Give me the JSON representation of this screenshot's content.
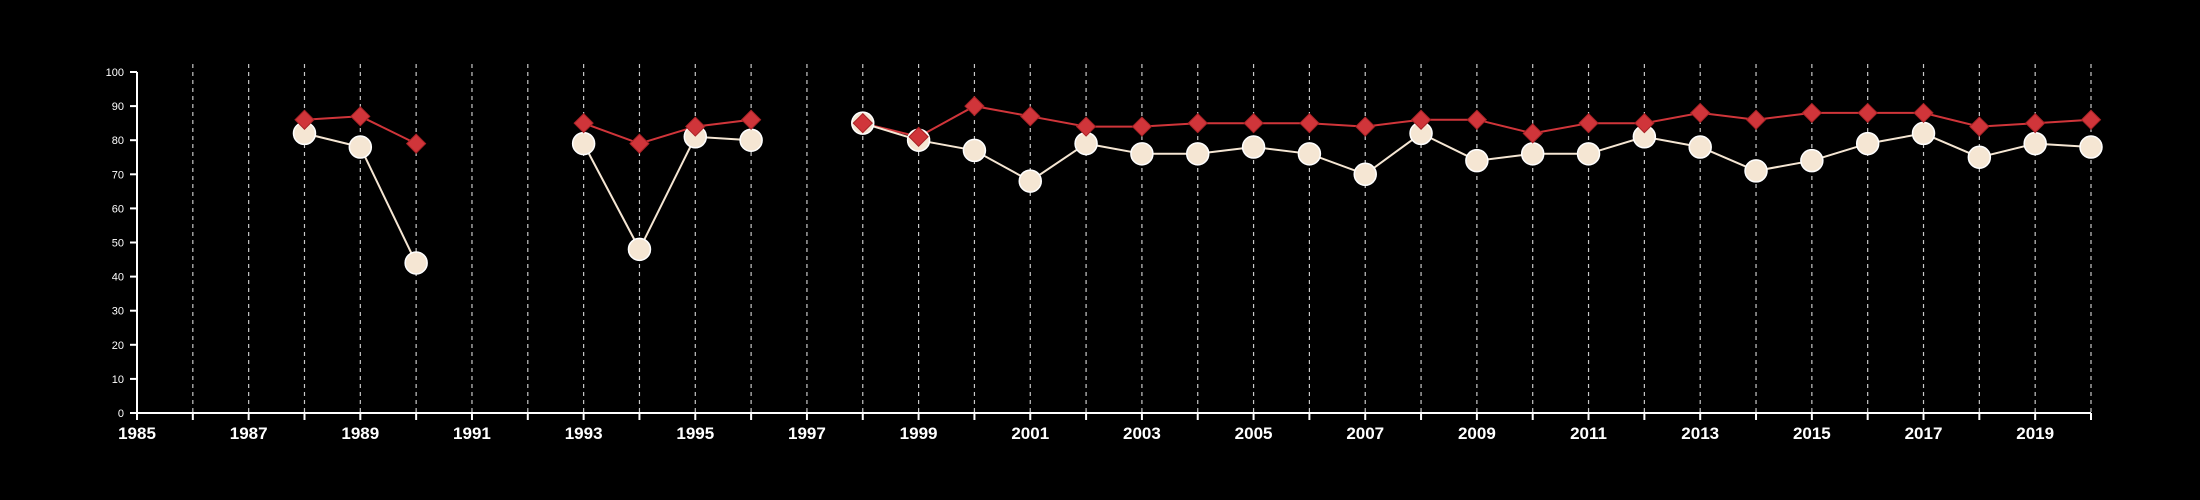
{
  "chart_data": {
    "type": "line",
    "x_ticks": [
      1985,
      1987,
      1989,
      1991,
      1993,
      1995,
      1997,
      1999,
      2001,
      2003,
      2005,
      2007,
      2009,
      2011,
      2013,
      2015,
      2017,
      2019
    ],
    "y_ticks": [
      0,
      10,
      20,
      30,
      40,
      50,
      60,
      70,
      80,
      90,
      100
    ],
    "xlim": [
      1985,
      2020
    ],
    "ylim": [
      0,
      100
    ],
    "grid": "vertical dashed lines at every year",
    "series": [
      {
        "marker": "diamond",
        "color": "#d0353a",
        "points": [
          [
            1988,
            86
          ],
          [
            1989,
            87
          ],
          [
            1990,
            79
          ],
          [
            1993,
            85
          ],
          [
            1994,
            79
          ],
          [
            1995,
            84
          ],
          [
            1996,
            86
          ],
          [
            1998,
            85
          ],
          [
            1999,
            81
          ],
          [
            2000,
            90
          ],
          [
            2001,
            87
          ],
          [
            2002,
            84
          ],
          [
            2003,
            84
          ],
          [
            2004,
            85
          ],
          [
            2005,
            85
          ],
          [
            2006,
            85
          ],
          [
            2007,
            84
          ],
          [
            2008,
            86
          ],
          [
            2009,
            86
          ],
          [
            2010,
            82
          ],
          [
            2011,
            85
          ],
          [
            2012,
            85
          ],
          [
            2013,
            88
          ],
          [
            2014,
            86
          ],
          [
            2015,
            88
          ],
          [
            2016,
            88
          ],
          [
            2017,
            88
          ],
          [
            2018,
            84
          ],
          [
            2019,
            85
          ],
          [
            2020,
            86
          ]
        ],
        "segments": [
          [
            1988,
            1990
          ],
          [
            1993,
            1996
          ],
          [
            1998,
            2020
          ]
        ]
      },
      {
        "marker": "circle",
        "color": "#f5e6d3",
        "points": [
          [
            1988,
            82
          ],
          [
            1989,
            78
          ],
          [
            1990,
            44
          ],
          [
            1993,
            79
          ],
          [
            1994,
            48
          ],
          [
            1995,
            81
          ],
          [
            1996,
            80
          ],
          [
            1998,
            85
          ],
          [
            1999,
            80
          ],
          [
            2000,
            77
          ],
          [
            2001,
            68
          ],
          [
            2002,
            79
          ],
          [
            2003,
            76
          ],
          [
            2004,
            76
          ],
          [
            2005,
            78
          ],
          [
            2006,
            76
          ],
          [
            2007,
            70
          ],
          [
            2008,
            82
          ],
          [
            2009,
            74
          ],
          [
            2010,
            76
          ],
          [
            2011,
            76
          ],
          [
            2012,
            81
          ],
          [
            2013,
            78
          ],
          [
            2014,
            71
          ],
          [
            2015,
            74
          ],
          [
            2016,
            79
          ],
          [
            2017,
            82
          ],
          [
            2018,
            75
          ],
          [
            2019,
            79
          ],
          [
            2020,
            78
          ]
        ],
        "segments": [
          [
            1988,
            1990
          ],
          [
            1993,
            1996
          ],
          [
            1998,
            2020
          ]
        ]
      }
    ]
  }
}
